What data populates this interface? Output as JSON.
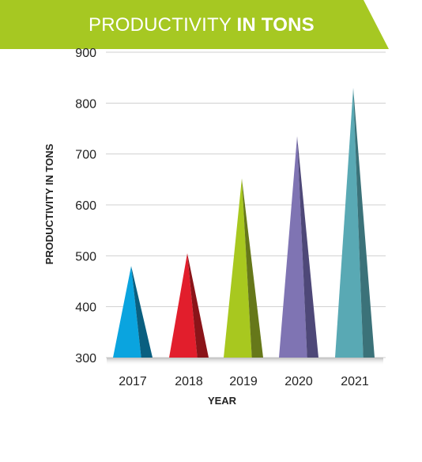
{
  "chart_data": {
    "type": "bar",
    "title_part1": "PRODUCTIVITY ",
    "title_part2": "IN TONS",
    "xlabel": "YEAR",
    "ylabel": "PRODUCTIVITY IN TONS",
    "categories": [
      "2017",
      "2018",
      "2019",
      "2020",
      "2021"
    ],
    "values": [
      480,
      505,
      652,
      735,
      830
    ],
    "ylim": [
      300,
      900
    ],
    "yticks": [
      300,
      400,
      500,
      600,
      700,
      800,
      900
    ],
    "grid": true,
    "bar_shape": "triangle",
    "colors": [
      "#0aa4df",
      "#e21e2c",
      "#a8c81f",
      "#7f74b3",
      "#59a9b4"
    ],
    "shadow_colors": [
      "#0a5f80",
      "#8b1419",
      "#66781a",
      "#4e4878",
      "#3b7279"
    ]
  },
  "colors": {
    "banner": "#a6c822",
    "grid": "#d0d0d0",
    "tick_text": "#222222",
    "label_text": "#222222"
  }
}
